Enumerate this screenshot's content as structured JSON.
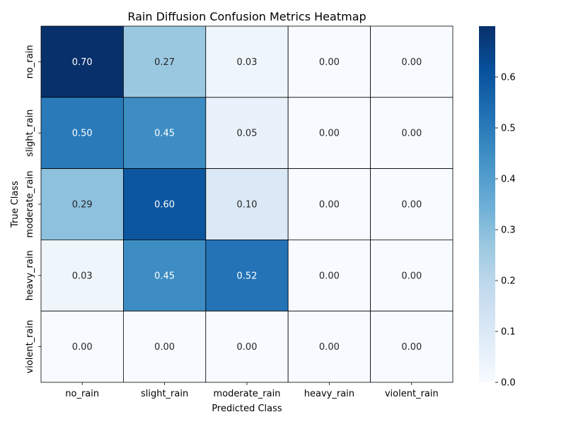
{
  "chart_data": {
    "type": "heatmap",
    "title": "Rain Diffusion Confusion Metrics Heatmap",
    "xlabel": "Predicted Class",
    "ylabel": "True Class",
    "x_categories": [
      "no_rain",
      "slight_rain",
      "moderate_rain",
      "heavy_rain",
      "violent_rain"
    ],
    "y_categories": [
      "no_rain",
      "slight_rain",
      "moderate_rain",
      "heavy_rain",
      "violent_rain"
    ],
    "values": [
      [
        0.7,
        0.27,
        0.03,
        0.0,
        0.0
      ],
      [
        0.5,
        0.45,
        0.05,
        0.0,
        0.0
      ],
      [
        0.29,
        0.6,
        0.1,
        0.0,
        0.0
      ],
      [
        0.03,
        0.45,
        0.52,
        0.0,
        0.0
      ],
      [
        0.0,
        0.0,
        0.0,
        0.0,
        0.0
      ]
    ],
    "cell_labels": [
      [
        "0.70",
        "0.27",
        "0.03",
        "0.00",
        "0.00"
      ],
      [
        "0.50",
        "0.45",
        "0.05",
        "0.00",
        "0.00"
      ],
      [
        "0.29",
        "0.60",
        "0.10",
        "0.00",
        "0.00"
      ],
      [
        "0.03",
        "0.45",
        "0.52",
        "0.00",
        "0.00"
      ],
      [
        "0.00",
        "0.00",
        "0.00",
        "0.00",
        "0.00"
      ]
    ],
    "colormap": "Blues",
    "colorbar": {
      "vmin": 0.0,
      "vmax": 0.7,
      "ticks": [
        0.0,
        0.1,
        0.2,
        0.3,
        0.4,
        0.5,
        0.6
      ],
      "tick_labels": [
        "0.0",
        "0.1",
        "0.2",
        "0.3",
        "0.4",
        "0.5",
        "0.6"
      ]
    },
    "cell_border_color": "#000000",
    "grid": false,
    "legend": "none"
  }
}
